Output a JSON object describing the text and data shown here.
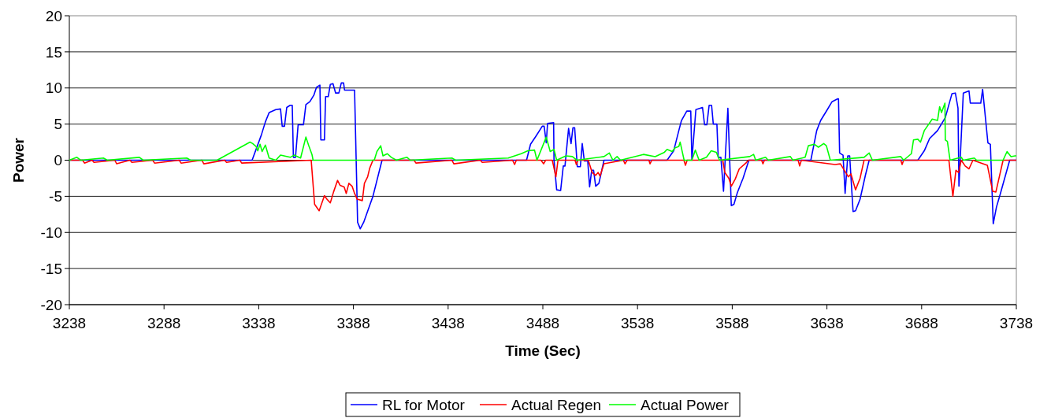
{
  "chart_data": {
    "type": "line",
    "xlabel": "Time (Sec)",
    "ylabel": "Power",
    "xlim": [
      3238,
      3738
    ],
    "xticks": [
      3238,
      3288,
      3338,
      3388,
      3438,
      3488,
      3538,
      3588,
      3638,
      3688,
      3738
    ],
    "ylim": [
      -20,
      20
    ],
    "yticks": [
      -20,
      -15,
      -10,
      -5,
      0,
      5,
      10,
      15,
      20
    ],
    "grid": "y",
    "legend": "bottom",
    "line_style": "solid",
    "marker": "none",
    "series": [
      {
        "name": "RL for Motor",
        "color": "#0000ff",
        "x": [
          3238,
          3334.5,
          3339.4,
          3341.5,
          3343.5,
          3347,
          3349.5,
          3350.4,
          3351.6,
          3352.8,
          3354.6,
          3355.7,
          3356.3,
          3357.4,
          3358.8,
          3361.6,
          3362.9,
          3365,
          3367.1,
          3368.5,
          3370.3,
          3370.8,
          3372.7,
          3373.3,
          3374.7,
          3375.8,
          3377.2,
          3378.6,
          3380.3,
          3381.6,
          3382.8,
          3383.3,
          3388.6,
          3390.2,
          3391.6,
          3393.4,
          3398.3,
          3403.1,
          3479.4,
          3481.5,
          3484.3,
          3487.7,
          3488.7,
          3489.8,
          3490.5,
          3493.7,
          3493.9,
          3495.3,
          3497.4,
          3498.8,
          3499.7,
          3501.6,
          3502.9,
          3503.9,
          3504.8,
          3506.2,
          3507.8,
          3508.8,
          3509.9,
          3511.7,
          3512.7,
          3513.8,
          3514.8,
          3515.9,
          3517.6,
          3520.3,
          3553.6,
          3557.1,
          3559.8,
          3561.2,
          3564,
          3566.1,
          3566.7,
          3568.8,
          3572.3,
          3573.4,
          3574.6,
          3575.8,
          3577.1,
          3578,
          3579.9,
          3580.6,
          3582,
          3583.4,
          3585.7,
          3587.5,
          3588.9,
          3590.7,
          3593.7,
          3596.8,
          3629.5,
          3632.6,
          3634.7,
          3638.2,
          3640.7,
          3643.7,
          3644.1,
          3644.7,
          3646.5,
          3647.6,
          3649,
          3650,
          3651.8,
          3653.1,
          3655.5,
          3658.3,
          3660.3,
          3686,
          3689.4,
          3692.2,
          3696.4,
          3700.5,
          3704,
          3705.8,
          3707.2,
          3707.7,
          3710,
          3713,
          3713.7,
          3719.2,
          3720.2,
          3723,
          3724.3,
          3725.8,
          3727.5,
          3729.6,
          3734.5,
          3738
        ],
        "values": [
          0,
          0,
          3.5,
          5.3,
          6.6,
          7,
          7.1,
          4.7,
          4.7,
          7.3,
          7.6,
          7.6,
          0.4,
          0.4,
          4.9,
          4.9,
          7.7,
          8.1,
          9,
          10.1,
          10.4,
          2.8,
          2.8,
          8.8,
          8.8,
          10.5,
          10.6,
          9.3,
          9.3,
          10.7,
          10.7,
          9.7,
          9.7,
          -8.6,
          -9.5,
          -8.6,
          -5,
          0,
          0,
          2.2,
          3.3,
          4.7,
          4.7,
          2.4,
          5.1,
          5.2,
          0,
          -4.1,
          -4.2,
          -0.8,
          -0.8,
          4.4,
          2.3,
          4.5,
          4.5,
          -0.9,
          -0.9,
          2.3,
          -0.1,
          -0.1,
          -3.7,
          -1.4,
          -1.4,
          -3.6,
          -3.2,
          0,
          0,
          1.3,
          4.1,
          5.5,
          6.8,
          6.8,
          0,
          7,
          7.3,
          4.9,
          4.9,
          7.6,
          7.6,
          5,
          5,
          0.4,
          0.4,
          -4.3,
          7.2,
          -6.3,
          -6.1,
          -4.5,
          -2.5,
          0,
          0,
          4.1,
          5.5,
          7,
          8.1,
          8.5,
          8.5,
          1,
          0.7,
          -4.6,
          0.6,
          0.6,
          -7.1,
          -7,
          -5.4,
          -2.1,
          0,
          0,
          1.3,
          3,
          4.1,
          5.9,
          9.2,
          9.3,
          7.2,
          -3.6,
          9.3,
          9.6,
          7.9,
          7.9,
          9.8,
          2.4,
          2.2,
          -8.8,
          -6.5,
          -4.6,
          0,
          0
        ]
      },
      {
        "name": "Actual Regen",
        "color": "#ff0000",
        "x": [
          3238,
          3245,
          3246,
          3250,
          3251,
          3262,
          3263,
          3270,
          3271,
          3282,
          3283,
          3296,
          3297,
          3308,
          3309,
          3320,
          3321,
          3328,
          3329,
          3365.7,
          3367.5,
          3369.9,
          3372.7,
          3374,
          3375.8,
          3377.5,
          3379.6,
          3381,
          3383.1,
          3384.2,
          3385.6,
          3387.3,
          3388.6,
          3390,
          3392.7,
          3393.8,
          3395.5,
          3396.6,
          3398.3,
          3420,
          3421,
          3440,
          3441,
          3455,
          3456,
          3472,
          3473.1,
          3474,
          3487,
          3488.4,
          3489.5,
          3493,
          3494.9,
          3496,
          3505,
          3505.7,
          3506.5,
          3512,
          3514,
          3515.9,
          3517.2,
          3518.2,
          3520.3,
          3530.5,
          3531.4,
          3532.5,
          3544,
          3544.6,
          3545.5,
          3562.5,
          3563.3,
          3564.2,
          3583,
          3584.1,
          3586.2,
          3587.5,
          3589.6,
          3591.7,
          3595.2,
          3596.5,
          3603.5,
          3604.2,
          3605,
          3622.8,
          3623.6,
          3624.5,
          3642.3,
          3645.1,
          3647.2,
          3649.3,
          3650.7,
          3653.1,
          3655.5,
          3657.6,
          3677,
          3677.7,
          3678.5,
          3702.4,
          3704.5,
          3706.1,
          3707.5,
          3708.9,
          3711,
          3713,
          3715.1,
          3722.7,
          3725.5,
          3727.2,
          3731,
          3738
        ],
        "values": [
          0,
          0,
          -0.4,
          0,
          -0.3,
          0,
          -0.5,
          0,
          -0.3,
          0,
          -0.4,
          0,
          -0.4,
          0,
          -0.5,
          0,
          -0.3,
          0,
          -0.4,
          0,
          -6.1,
          -7,
          -4.9,
          -5.4,
          -5.9,
          -4.4,
          -2.8,
          -3.5,
          -3.7,
          -4.6,
          -3.2,
          -3.6,
          -4.6,
          -5.4,
          -5.6,
          -3.2,
          -2.3,
          -1.1,
          0,
          0,
          -0.4,
          0,
          -0.5,
          0,
          -0.3,
          0,
          -0.6,
          0,
          0,
          -0.5,
          0,
          0,
          -2.3,
          0,
          0,
          -0.6,
          0,
          0,
          -1.7,
          -2.1,
          -1.7,
          -2.2,
          -0.5,
          0,
          -0.5,
          0,
          0,
          -0.5,
          0,
          0,
          -0.7,
          0,
          0,
          -1.7,
          -2.5,
          -3.6,
          -2.6,
          -1.2,
          -0.4,
          0,
          0,
          -0.5,
          0,
          0,
          -0.8,
          0,
          -0.6,
          -0.5,
          -1.4,
          -2.3,
          -1.9,
          -4.1,
          -2.5,
          0,
          0,
          -0.6,
          0,
          0,
          -5,
          -1.4,
          -1.7,
          0,
          -0.8,
          -1.2,
          0,
          -0.7,
          -4.3,
          -4.4,
          0,
          0
        ]
      },
      {
        "name": "Actual Power",
        "color": "#00ff00",
        "x": [
          3238,
          3242,
          3244,
          3256,
          3258,
          3275,
          3277,
          3300,
          3302,
          3313.3,
          3316,
          3333.4,
          3334.8,
          3336.6,
          3337.5,
          3338.7,
          3339.8,
          3341.5,
          3343.5,
          3347,
          3349.5,
          3354.6,
          3356.7,
          3360.1,
          3362.9,
          3364.3,
          3366.1,
          3366.7,
          3399,
          3400.4,
          3402.4,
          3403.6,
          3405.9,
          3408,
          3410.7,
          3416.3,
          3418,
          3440,
          3442,
          3469.7,
          3476.6,
          3480.1,
          3483.6,
          3484.9,
          3489.8,
          3491.9,
          3493.9,
          3495.3,
          3500.2,
          3503.6,
          3506,
          3520.3,
          3523.1,
          3525,
          3527.2,
          3529,
          3541.1,
          3547.3,
          3552.2,
          3553.6,
          3556.3,
          3557.7,
          3559.8,
          3560.5,
          3562.6,
          3566.7,
          3568.5,
          3570.5,
          3574.4,
          3576.9,
          3579.6,
          3581.3,
          3597.2,
          3599.3,
          3600.4,
          3605.6,
          3607,
          3618.7,
          3620,
          3626.5,
          3628.2,
          3631.4,
          3633.5,
          3636.3,
          3637.7,
          3639.8,
          3657.6,
          3660.3,
          3662,
          3677,
          3678.5,
          3682.6,
          3683.7,
          3686,
          3687.4,
          3689.4,
          3690.2,
          3693.6,
          3696.4,
          3697.5,
          3698.5,
          3700.3,
          3700.5,
          3701.6,
          3703,
          3708.9,
          3710,
          3715.8,
          3717,
          3731,
          3733.1,
          3735.2,
          3737.3,
          3738
        ],
        "values": [
          0,
          0.4,
          0,
          0.3,
          0,
          0.4,
          0,
          0.3,
          0,
          0,
          0,
          2.5,
          2.3,
          1.9,
          1.3,
          2.2,
          1.2,
          2.1,
          0.3,
          0,
          0.7,
          0.4,
          0.7,
          0.3,
          3.2,
          2.1,
          0.8,
          0,
          0,
          1.2,
          2,
          0.6,
          0.9,
          0.4,
          0,
          0.4,
          0,
          0.3,
          0,
          0.3,
          0.9,
          1.3,
          1.4,
          0,
          3.2,
          1.2,
          1.5,
          0,
          0.6,
          0.5,
          0,
          0.5,
          1,
          0,
          0.5,
          0,
          0.8,
          0.5,
          1.1,
          1.5,
          1.2,
          1.7,
          1.9,
          2.5,
          0,
          0,
          1.4,
          0,
          0.4,
          1.3,
          1.1,
          0,
          0.5,
          0.8,
          0,
          0.4,
          0,
          0.5,
          0,
          0.4,
          2,
          2.2,
          1.8,
          2.3,
          2,
          0,
          0.4,
          1,
          0,
          0.5,
          0,
          0.9,
          2.8,
          2.9,
          2.5,
          4.1,
          4.4,
          5.7,
          5.5,
          7.4,
          6.6,
          7.9,
          2.8,
          2.6,
          0,
          0.4,
          0,
          0.3,
          0,
          0,
          1.2,
          0.5,
          0.6,
          0.6
        ]
      }
    ]
  }
}
